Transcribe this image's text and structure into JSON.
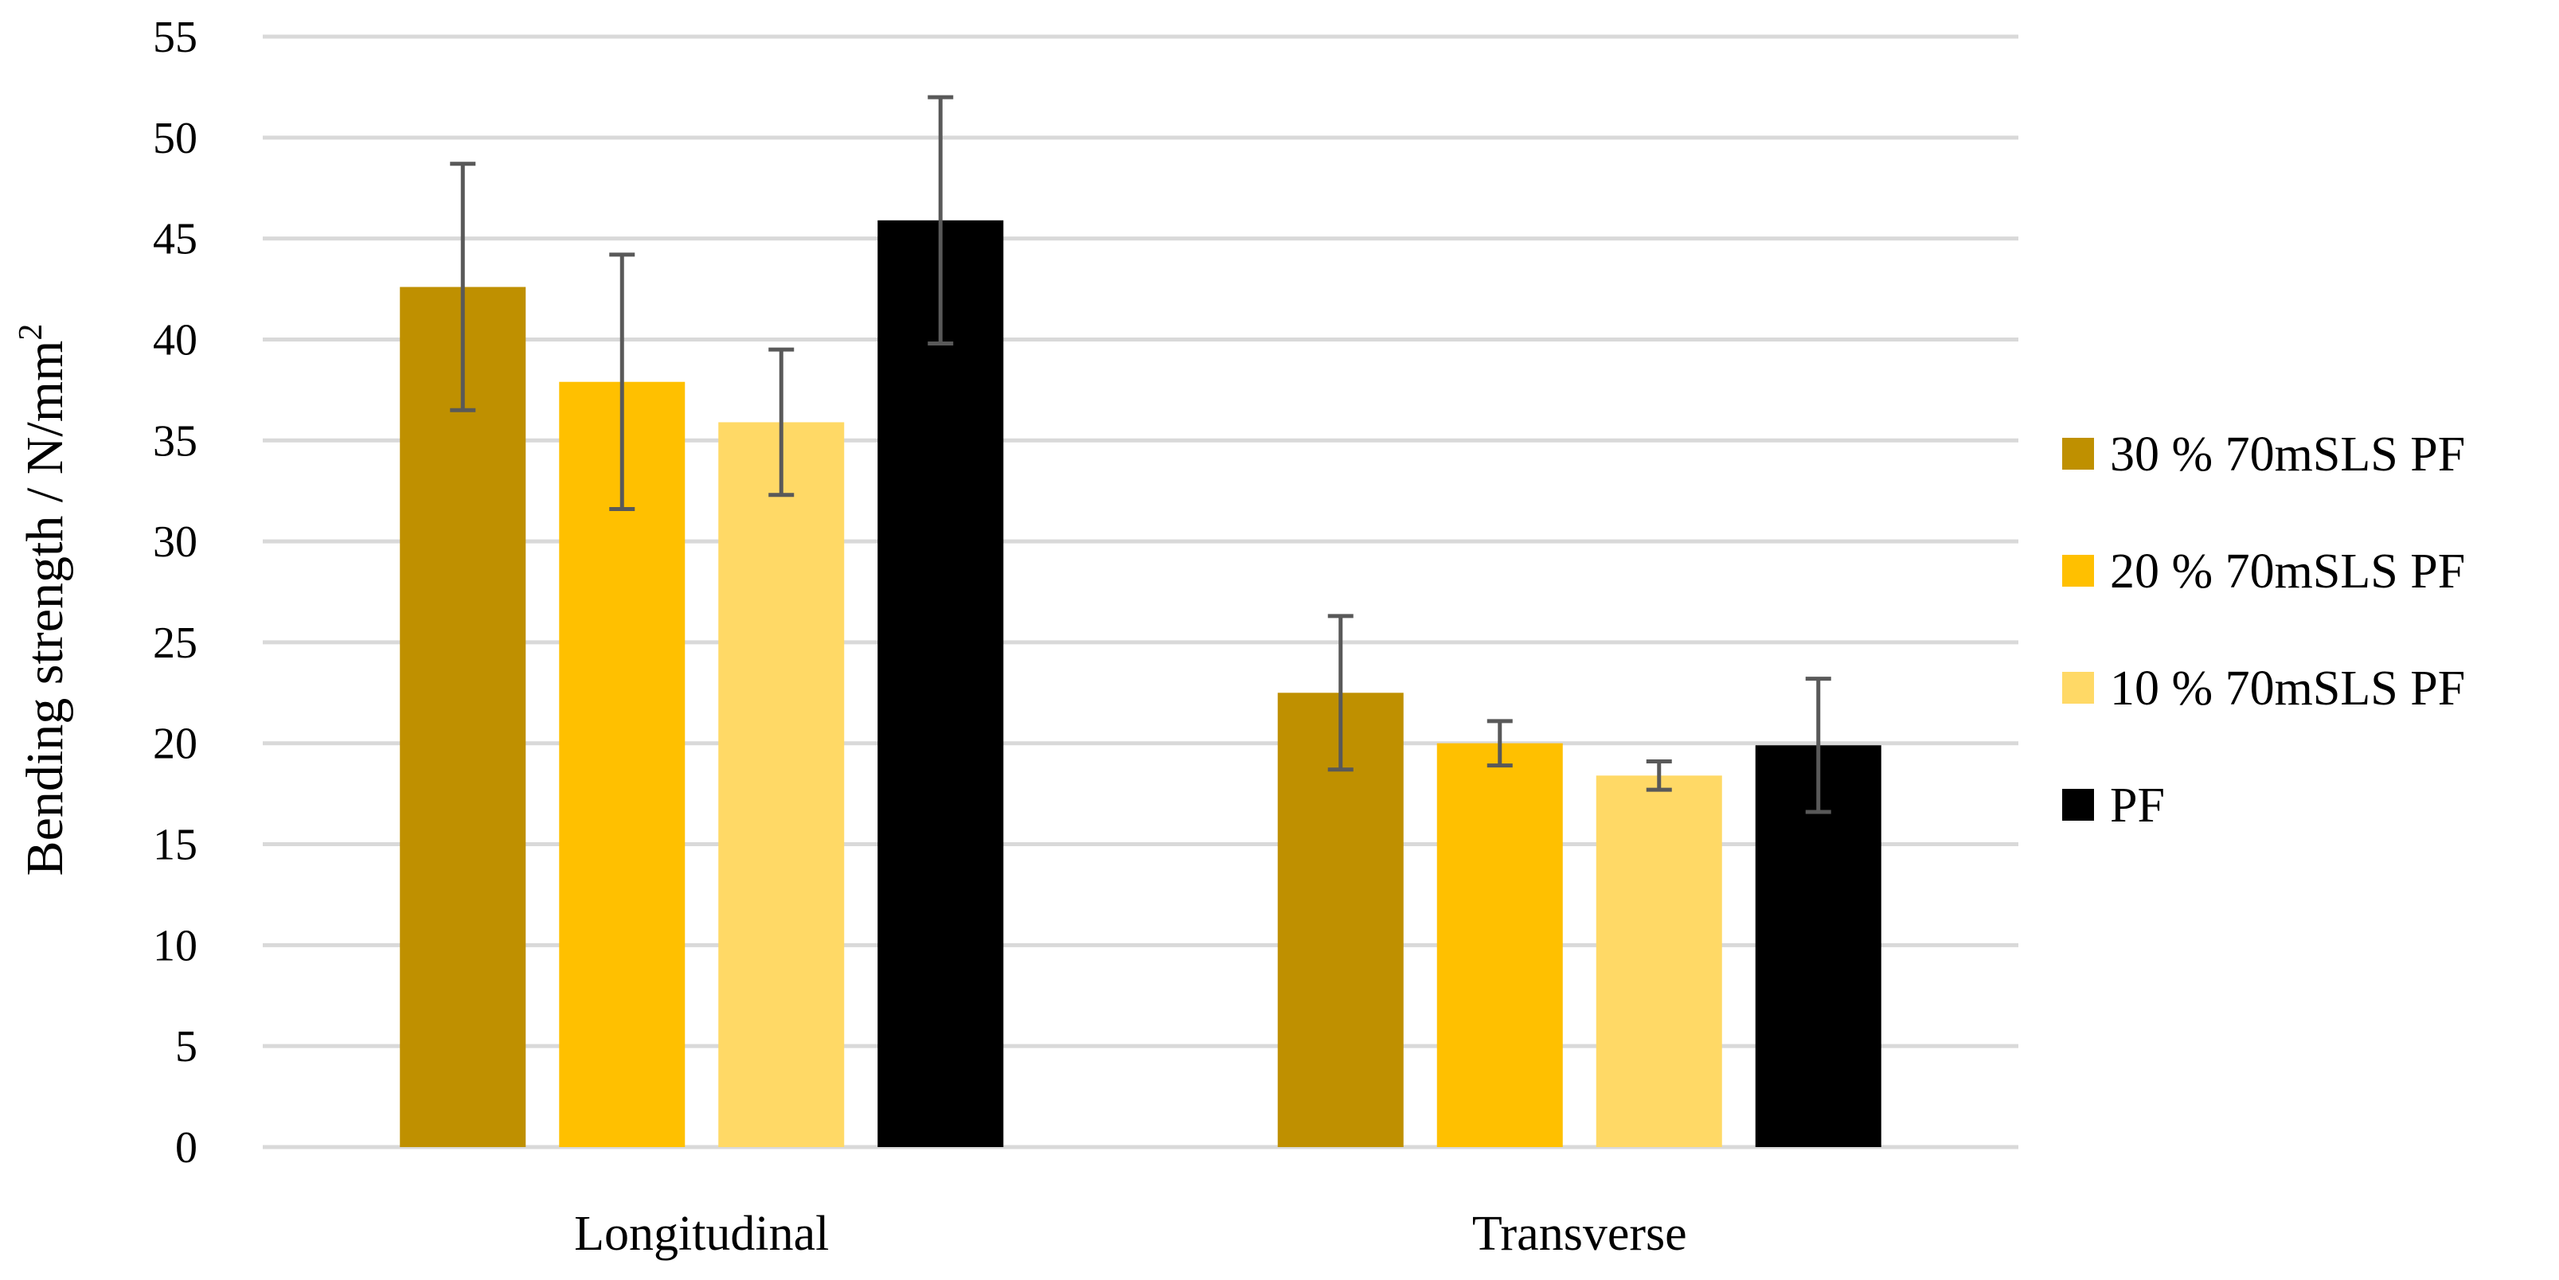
{
  "chart_data": {
    "type": "bar",
    "title": "",
    "xlabel": "",
    "ylabel": "Bending strength / N/mm",
    "ylabel_superscript": "2",
    "ylim": [
      0,
      55
    ],
    "ytick_step": 5,
    "yticks": [
      "0",
      "5",
      "10",
      "15",
      "20",
      "25",
      "30",
      "35",
      "40",
      "45",
      "50",
      "55"
    ],
    "grid": true,
    "legend_position": "right",
    "categories": [
      "Longitudinal",
      "Transverse"
    ],
    "error_bar_color": "#595959",
    "series": [
      {
        "name": "30 % 70mSLS PF",
        "color": "#bf9000",
        "values": [
          42.6,
          22.5
        ],
        "errors": [
          6.1,
          3.8
        ]
      },
      {
        "name": "20 % 70mSLS PF",
        "color": "#ffc000",
        "values": [
          37.9,
          20.0
        ],
        "errors": [
          6.3,
          1.1
        ]
      },
      {
        "name": "10 % 70mSLS PF",
        "color": "#ffd966",
        "values": [
          35.9,
          18.4
        ],
        "errors": [
          3.6,
          0.7
        ]
      },
      {
        "name": "PF",
        "color": "#000000",
        "values": [
          45.9,
          19.9
        ],
        "errors": [
          6.1,
          3.3
        ]
      }
    ]
  }
}
